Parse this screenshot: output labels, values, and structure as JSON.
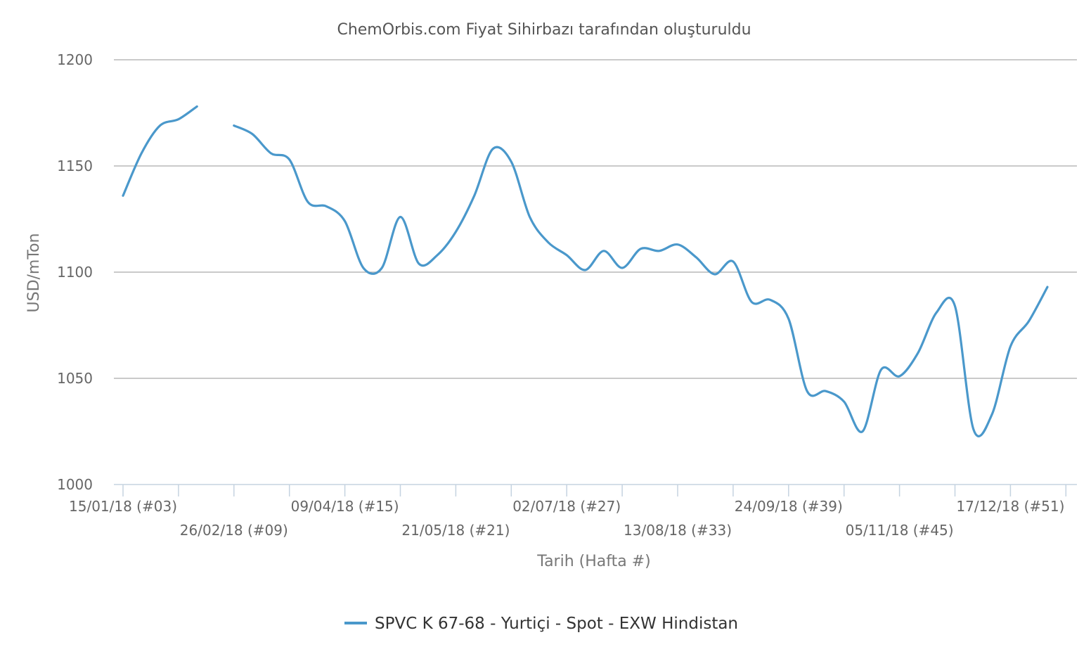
{
  "chart_data": {
    "type": "line",
    "title": "ChemOrbis.com Fiyat Sihirbazı tarafından oluşturuldu",
    "xlabel": "Tarih (Hafta #)",
    "ylabel": "USD/mTon",
    "ylim": [
      1000,
      1200
    ],
    "yticks": [
      "1000",
      "1050",
      "1100",
      "1150",
      "1200"
    ],
    "grid": true,
    "legend_position": "bottom-center",
    "x_tick_labels": [
      {
        "week": 3,
        "label": "15/01/18 (#03)"
      },
      {
        "week": 9,
        "label": "26/02/18 (#09)"
      },
      {
        "week": 15,
        "label": "09/04/18 (#15)"
      },
      {
        "week": 21,
        "label": "21/05/18 (#21)"
      },
      {
        "week": 27,
        "label": "02/07/18 (#27)"
      },
      {
        "week": 33,
        "label": "13/08/18 (#33)"
      },
      {
        "week": 39,
        "label": "24/09/18 (#39)"
      },
      {
        "week": 45,
        "label": "05/11/18 (#45)"
      },
      {
        "week": 51,
        "label": "17/12/18 (#51)"
      }
    ],
    "x_tick_marks": [
      3,
      6,
      9,
      12,
      15,
      18,
      21,
      24,
      27,
      30,
      33,
      36,
      39,
      42,
      45,
      48,
      51,
      54
    ],
    "series": [
      {
        "name": "SPVC K 67-68 - Yurtiçi - Spot - EXW Hindistan",
        "color": "#4a98cb",
        "segments": [
          [
            [
              3,
              1136
            ],
            [
              4,
              1156
            ],
            [
              5,
              1169
            ],
            [
              6,
              1172
            ],
            [
              7,
              1178
            ]
          ],
          [
            [
              9,
              1169
            ],
            [
              10,
              1165
            ],
            [
              11,
              1156
            ],
            [
              12,
              1153
            ],
            [
              13,
              1133
            ],
            [
              14,
              1131
            ],
            [
              15,
              1124
            ],
            [
              16,
              1102
            ],
            [
              17,
              1102
            ],
            [
              18,
              1126
            ],
            [
              19,
              1104
            ],
            [
              20,
              1108
            ],
            [
              21,
              1119
            ],
            [
              22,
              1136
            ],
            [
              23,
              1158
            ],
            [
              24,
              1152
            ],
            [
              25,
              1126
            ],
            [
              26,
              1114
            ],
            [
              27,
              1108
            ],
            [
              28,
              1101
            ],
            [
              29,
              1110
            ],
            [
              30,
              1102
            ],
            [
              31,
              1111
            ],
            [
              32,
              1110
            ],
            [
              33,
              1113
            ],
            [
              34,
              1107
            ],
            [
              35,
              1099
            ],
            [
              36,
              1105
            ],
            [
              37,
              1086
            ],
            [
              38,
              1087
            ],
            [
              39,
              1078
            ],
            [
              40,
              1044
            ],
            [
              41,
              1044
            ],
            [
              42,
              1039
            ],
            [
              43,
              1025
            ],
            [
              44,
              1054
            ],
            [
              45,
              1051
            ],
            [
              46,
              1062
            ],
            [
              47,
              1081
            ],
            [
              48,
              1084
            ],
            [
              49,
              1026
            ],
            [
              50,
              1033
            ],
            [
              51,
              1065
            ],
            [
              52,
              1077
            ],
            [
              53,
              1093
            ]
          ]
        ]
      }
    ]
  }
}
